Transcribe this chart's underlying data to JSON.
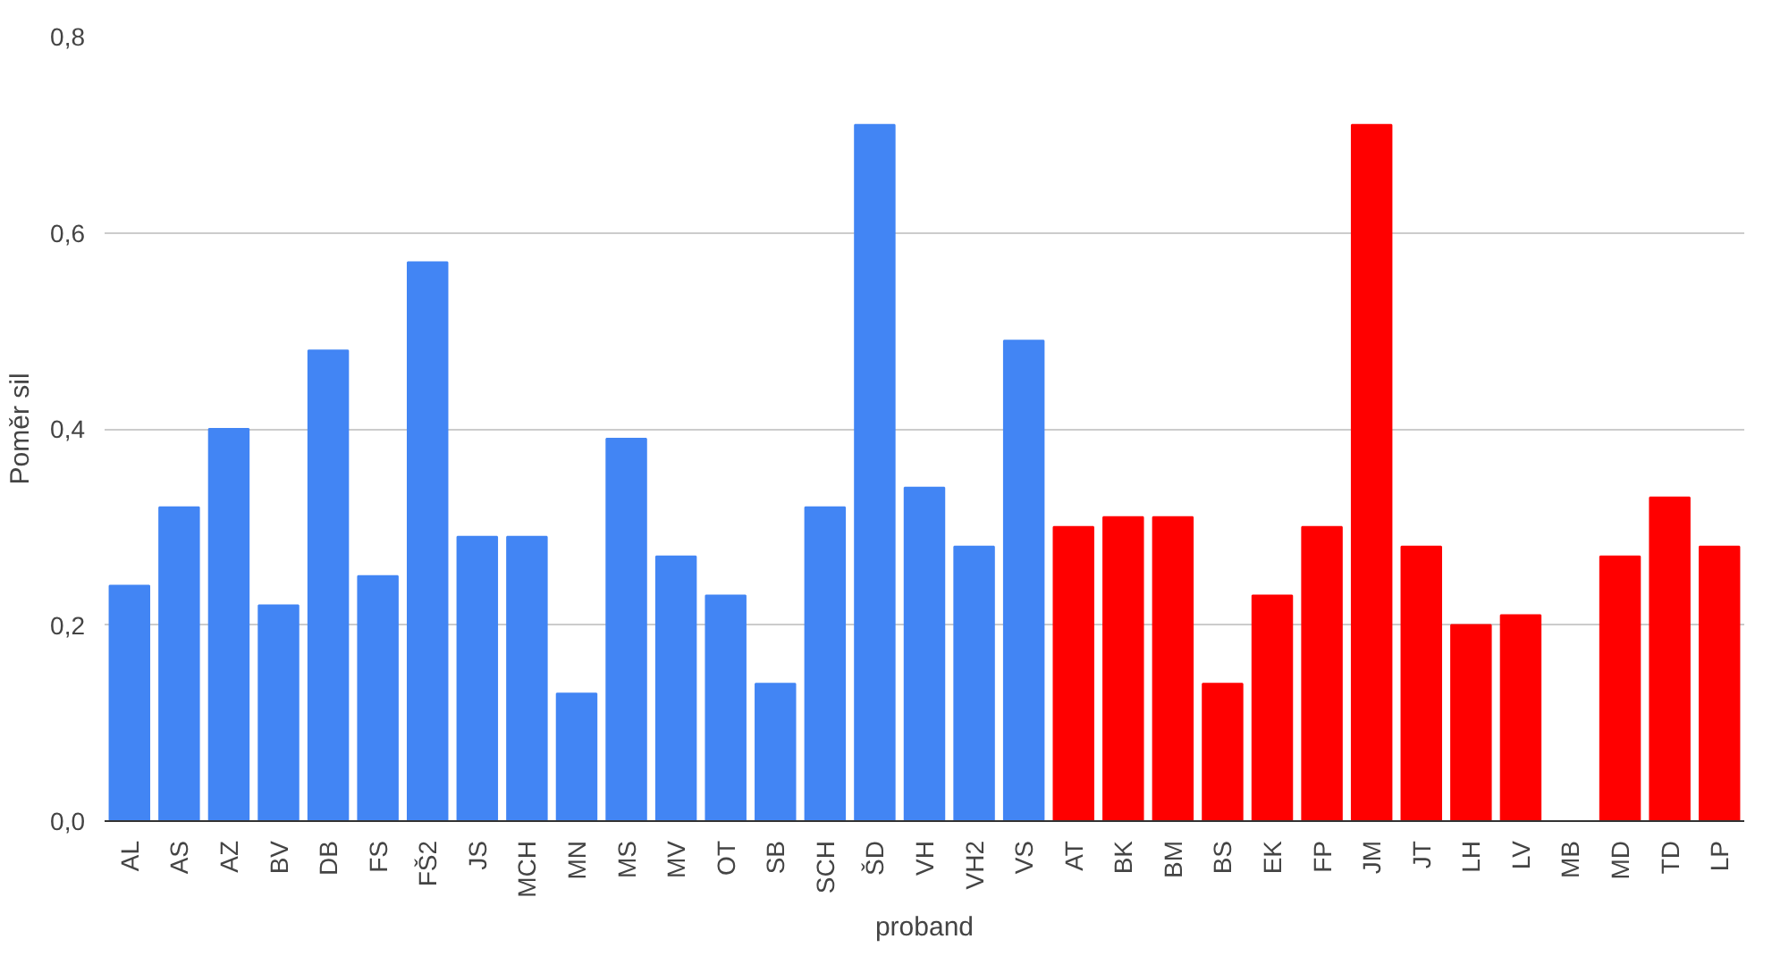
{
  "chart_data": {
    "type": "bar",
    "xlabel": "proband",
    "ylabel": "Poměr sil",
    "categories": [
      "AL",
      "AS",
      "AZ",
      "BV",
      "DB",
      "FS",
      "FŠ2",
      "JS",
      "MCH",
      "MN",
      "MS",
      "MV",
      "OT",
      "SB",
      "SCH",
      "ŠD",
      "VH",
      "VH2",
      "VS",
      "AT",
      "BK",
      "BM",
      "BS",
      "EK",
      "FP",
      "JM",
      "JT",
      "LH",
      "LV",
      "MB",
      "MD",
      "TD",
      "LP"
    ],
    "values": [
      0.24,
      0.32,
      0.4,
      0.22,
      0.48,
      0.25,
      0.57,
      0.29,
      0.29,
      0.13,
      0.39,
      0.27,
      0.23,
      0.14,
      0.32,
      0.71,
      0.34,
      0.28,
      0.49,
      0.3,
      0.31,
      0.31,
      0.14,
      0.23,
      0.3,
      0.71,
      0.28,
      0.2,
      0.21,
      0,
      0.27,
      0.33,
      0.28
    ],
    "colors": [
      "#4285f4",
      "#4285f4",
      "#4285f4",
      "#4285f4",
      "#4285f4",
      "#4285f4",
      "#4285f4",
      "#4285f4",
      "#4285f4",
      "#4285f4",
      "#4285f4",
      "#4285f4",
      "#4285f4",
      "#4285f4",
      "#4285f4",
      "#4285f4",
      "#4285f4",
      "#4285f4",
      "#4285f4",
      "#ff0000",
      "#ff0000",
      "#ff0000",
      "#ff0000",
      "#ff0000",
      "#ff0000",
      "#ff0000",
      "#ff0000",
      "#ff0000",
      "#ff0000",
      "#ff0000",
      "#ff0000",
      "#ff0000",
      "#ff0000"
    ],
    "ylim": [
      0,
      0.8
    ],
    "yticks": [
      {
        "value": 0,
        "label": "0,0"
      },
      {
        "value": 0.2,
        "label": "0,2"
      },
      {
        "value": 0.4,
        "label": "0,4"
      },
      {
        "value": 0.6,
        "label": "0,6"
      },
      {
        "value": 0.8,
        "label": "0,8"
      }
    ],
    "grid": "y"
  }
}
